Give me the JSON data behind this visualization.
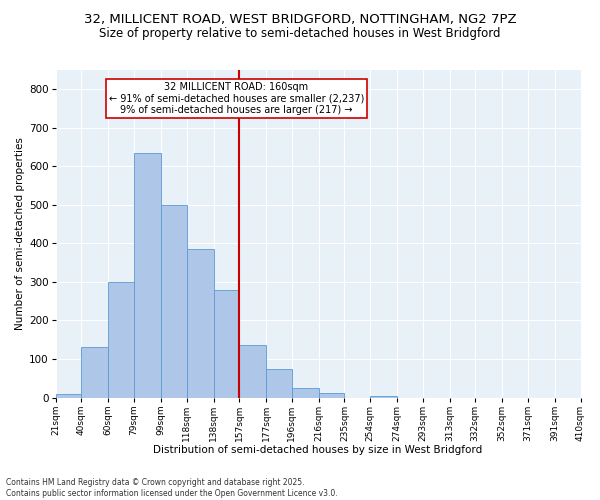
{
  "title": "32, MILLICENT ROAD, WEST BRIDGFORD, NOTTINGHAM, NG2 7PZ",
  "subtitle": "Size of property relative to semi-detached houses in West Bridgford",
  "xlabel": "Distribution of semi-detached houses by size in West Bridgford",
  "ylabel": "Number of semi-detached properties",
  "bin_labels": [
    "21sqm",
    "40sqm",
    "60sqm",
    "79sqm",
    "99sqm",
    "118sqm",
    "138sqm",
    "157sqm",
    "177sqm",
    "196sqm",
    "216sqm",
    "235sqm",
    "254sqm",
    "274sqm",
    "293sqm",
    "313sqm",
    "332sqm",
    "352sqm",
    "371sqm",
    "391sqm",
    "410sqm"
  ],
  "bin_edges": [
    21,
    40,
    60,
    79,
    99,
    118,
    138,
    157,
    177,
    196,
    216,
    235,
    254,
    274,
    293,
    313,
    332,
    352,
    371,
    391,
    410
  ],
  "bar_heights": [
    10,
    130,
    300,
    635,
    500,
    385,
    280,
    135,
    75,
    25,
    13,
    0,
    5,
    0,
    0,
    0,
    0,
    0,
    0,
    0
  ],
  "bar_color": "#aec6e8",
  "bar_edgecolor": "#5b9bd5",
  "vline_x": 157,
  "vline_color": "#cc0000",
  "annotation_title": "32 MILLICENT ROAD: 160sqm",
  "annotation_line1": "← 91% of semi-detached houses are smaller (2,237)",
  "annotation_line2": "9% of semi-detached houses are larger (217) →",
  "annotation_box_color": "#cc0000",
  "ylim": [
    0,
    850
  ],
  "yticks": [
    0,
    100,
    200,
    300,
    400,
    500,
    600,
    700,
    800
  ],
  "bg_color": "#e8f0f8",
  "footer_line1": "Contains HM Land Registry data © Crown copyright and database right 2025.",
  "footer_line2": "Contains public sector information licensed under the Open Government Licence v3.0.",
  "title_fontsize": 9.5,
  "subtitle_fontsize": 8.5
}
